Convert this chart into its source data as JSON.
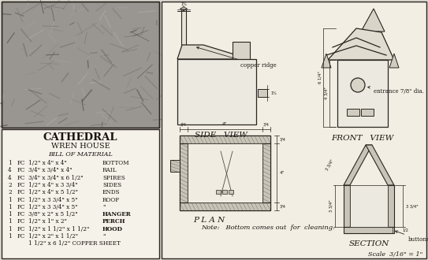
{
  "background_color": "#dedad2",
  "line_color": "#2a2520",
  "text_color": "#1a1510",
  "light_fill": "#f0ece0",
  "gray_fill": "#c8c4b8",
  "dark_fill": "#a8a49a",
  "heading_cathedral": "CATHEDRAL",
  "heading_wren": "WREN HOUSE",
  "heading_bom": "BILL OF MATERIAL",
  "bom_lines": [
    [
      "1",
      "PC",
      "1/2\" x 4\" x 4\"",
      "BOTTOM"
    ],
    [
      "4",
      "PC",
      "3/4\" x 3/4\" x 4\"",
      "RAIL"
    ],
    [
      "4",
      "PC",
      "3/4\" x 3/4\" x 6 1/2\"",
      "SPIRES"
    ],
    [
      "2",
      "PC",
      "1/2\" x 4\" x 3 3/4\"",
      "SIDES"
    ],
    [
      "2",
      "PC",
      "1/2\" x 4\" x 5 1/2\"",
      "ENDS"
    ],
    [
      "1",
      "PC",
      "1/2\" x 3 3/4\" x 5\"",
      "ROOF"
    ],
    [
      "1",
      "PC",
      "1/2\" x 3 3/4\" x 5\"",
      "\""
    ],
    [
      "1",
      "PC",
      "3/8\" x 2\" x 5 1/2\"",
      "HANGER"
    ],
    [
      "1",
      "PC",
      "1/2\" x 1\" x 2\"",
      "PERCH"
    ],
    [
      "1",
      "PC",
      "1/2\" x 1 1/2\" x 1 1/2\"",
      "HOOD"
    ],
    [
      "1",
      "PC",
      "1/2\" x 2\" x 1 1/2\"",
      "\""
    ],
    [
      "",
      "",
      "1 1/2\" x 6 1/2\" COPPER SHEET",
      ""
    ]
  ],
  "labels": {
    "side_view": "SIDE   VIEW",
    "front_view": "FRONT   VIEW",
    "plan": "P L A N",
    "section": "SECTION",
    "copper_ridge": "copper ridge",
    "entrance": "entrance 7/8\" dia.",
    "buttons": "buttons",
    "note": "Note:   Bottom comes out  for  cleaning.",
    "scale": "Scale  3/16\" = 1\""
  }
}
